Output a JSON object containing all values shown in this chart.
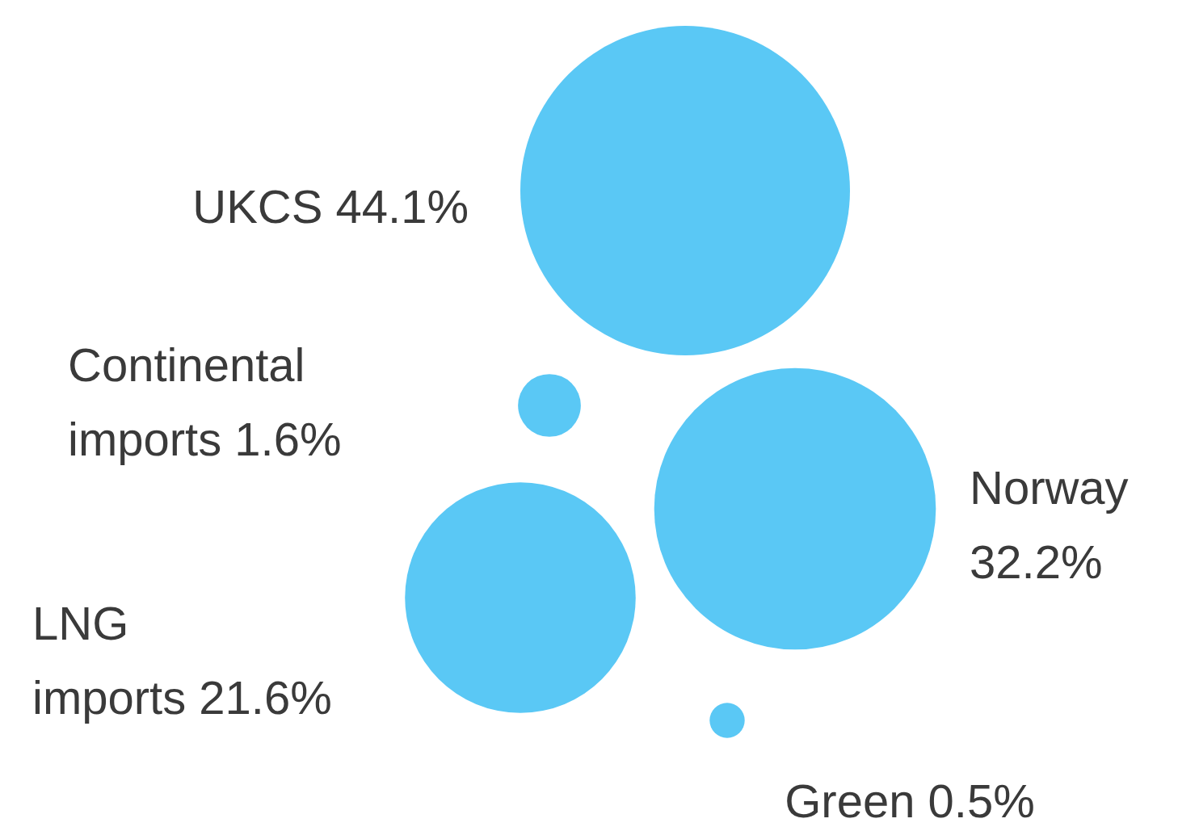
{
  "chart_data": {
    "type": "other",
    "categories": [
      "UKCS",
      "Continental imports",
      "Norway",
      "LNG imports",
      "Green"
    ],
    "values": [
      44.1,
      1.6,
      32.2,
      21.6,
      0.5
    ],
    "value_labels": [
      "44.1%",
      "1.6%",
      "32.2%",
      "21.6%",
      "0.5%"
    ],
    "color": "#5ac8f5"
  }
}
